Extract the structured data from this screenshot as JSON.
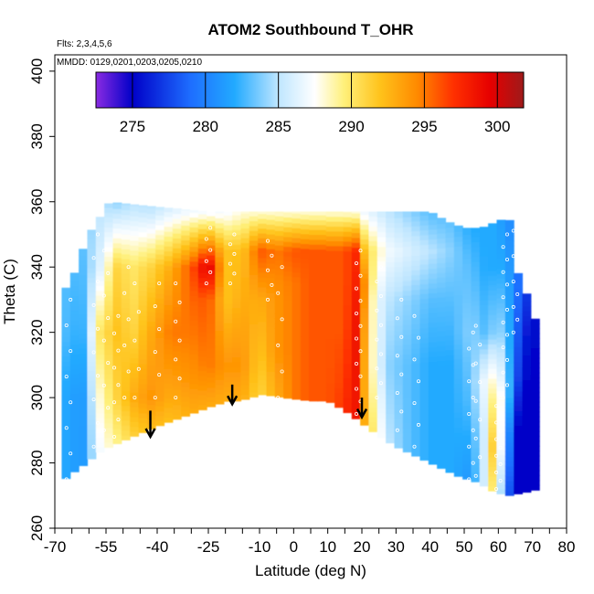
{
  "chart_data": {
    "type": "heatmap",
    "title": "ATOM2 Southbound T_OHR",
    "annotations": [
      "Flts: 2,3,4,5,6",
      "MMDD: 0129,0201,0203,0205,0210"
    ],
    "xlabel": "Latitude (deg N)",
    "ylabel": "Theta (C)",
    "xlim": [
      -70,
      80
    ],
    "ylim": [
      260,
      405
    ],
    "x_ticks": [
      -70,
      -55,
      -40,
      -25,
      -10,
      0,
      10,
      20,
      30,
      40,
      50,
      60,
      70,
      80
    ],
    "y_ticks": [
      260,
      280,
      300,
      320,
      340,
      360,
      380,
      400
    ],
    "colorbar": {
      "range": [
        272.5,
        301.8
      ],
      "ticks": [
        275,
        280,
        285,
        290,
        295,
        300
      ],
      "stops": [
        {
          "v": 272.5,
          "c": "#8a2be2"
        },
        {
          "v": 275,
          "c": "#0000c8"
        },
        {
          "v": 279,
          "c": "#1e6eff"
        },
        {
          "v": 282,
          "c": "#22aaff"
        },
        {
          "v": 285,
          "c": "#bfe6ff"
        },
        {
          "v": 287.5,
          "c": "#ffffff"
        },
        {
          "v": 289.5,
          "c": "#fff07a"
        },
        {
          "v": 292,
          "c": "#ffc21a"
        },
        {
          "v": 294.5,
          "c": "#ff8a00"
        },
        {
          "v": 297,
          "c": "#ff3000"
        },
        {
          "v": 299.5,
          "c": "#e60000"
        },
        {
          "v": 301.8,
          "c": "#9e1a1a"
        }
      ]
    },
    "field_bottom": [
      [
        -68,
        274
      ],
      [
        -66,
        276
      ],
      [
        -62,
        279
      ],
      [
        -56,
        284
      ],
      [
        -45,
        289
      ],
      [
        -38,
        292
      ],
      [
        -30,
        295
      ],
      [
        -25,
        297
      ],
      [
        -19,
        299
      ],
      [
        -16,
        299
      ],
      [
        -9,
        301
      ],
      [
        -3,
        300
      ],
      [
        5,
        299
      ],
      [
        10,
        299
      ],
      [
        15,
        296
      ],
      [
        19,
        293
      ],
      [
        24,
        289
      ],
      [
        30,
        285
      ],
      [
        36,
        282
      ],
      [
        42,
        279
      ],
      [
        48,
        276
      ],
      [
        54,
        274
      ],
      [
        59,
        271
      ],
      [
        63,
        270
      ],
      [
        68,
        271
      ],
      [
        72,
        272
      ]
    ],
    "field_top": [
      [
        -68,
        332
      ],
      [
        -65,
        336
      ],
      [
        -62,
        345
      ],
      [
        -59,
        352
      ],
      [
        -55,
        358
      ],
      [
        -54,
        360
      ],
      [
        -45,
        359
      ],
      [
        -35,
        358
      ],
      [
        -25,
        357
      ],
      [
        -15,
        357
      ],
      [
        0,
        357
      ],
      [
        15,
        357
      ],
      [
        30,
        357
      ],
      [
        40,
        357
      ],
      [
        45,
        354
      ],
      [
        50,
        352
      ],
      [
        55,
        352
      ],
      [
        62,
        355
      ],
      [
        64,
        354
      ],
      [
        65,
        340
      ],
      [
        69,
        330
      ],
      [
        72,
        320
      ]
    ],
    "columns": [
      {
        "lat": -68,
        "vals": [
          [
            274,
            282
          ],
          [
            300,
            282
          ],
          [
            320,
            283
          ],
          [
            332,
            283
          ]
        ]
      },
      {
        "lat": -62,
        "vals": [
          [
            279,
            281
          ],
          [
            300,
            281
          ],
          [
            320,
            282
          ],
          [
            345,
            283
          ]
        ]
      },
      {
        "lat": -57,
        "vals": [
          [
            283,
            287
          ],
          [
            300,
            288
          ],
          [
            320,
            290
          ],
          [
            340,
            286
          ],
          [
            358,
            285
          ]
        ]
      },
      {
        "lat": -52,
        "vals": [
          [
            285,
            289
          ],
          [
            300,
            291
          ],
          [
            320,
            292
          ],
          [
            340,
            291
          ],
          [
            360,
            284
          ]
        ]
      },
      {
        "lat": -47,
        "vals": [
          [
            287,
            291
          ],
          [
            300,
            293
          ],
          [
            320,
            291
          ],
          [
            340,
            290
          ],
          [
            359,
            285
          ]
        ]
      },
      {
        "lat": -42,
        "vals": [
          [
            289,
            292
          ],
          [
            300,
            294
          ],
          [
            320,
            293
          ],
          [
            340,
            291
          ],
          [
            358,
            285
          ]
        ]
      },
      {
        "lat": -36,
        "vals": [
          [
            292,
            292
          ],
          [
            300,
            293
          ],
          [
            320,
            295
          ],
          [
            340,
            293
          ],
          [
            358,
            286
          ]
        ]
      },
      {
        "lat": -30,
        "vals": [
          [
            295,
            293
          ],
          [
            305,
            294
          ],
          [
            320,
            295
          ],
          [
            340,
            296
          ],
          [
            357,
            287
          ]
        ]
      },
      {
        "lat": -25,
        "vals": [
          [
            297,
            293
          ],
          [
            310,
            295
          ],
          [
            330,
            296
          ],
          [
            340,
            300
          ],
          [
            357,
            287
          ]
        ]
      },
      {
        "lat": -20,
        "vals": [
          [
            299,
            293
          ],
          [
            310,
            294
          ],
          [
            330,
            292
          ],
          [
            345,
            292
          ],
          [
            357,
            287
          ]
        ]
      },
      {
        "lat": -15,
        "vals": [
          [
            299,
            293
          ],
          [
            310,
            294
          ],
          [
            330,
            293
          ],
          [
            345,
            292
          ],
          [
            357,
            288
          ]
        ]
      },
      {
        "lat": -10,
        "vals": [
          [
            301,
            291
          ],
          [
            315,
            292
          ],
          [
            330,
            293
          ],
          [
            345,
            296
          ],
          [
            357,
            288
          ]
        ]
      },
      {
        "lat": -5,
        "vals": [
          [
            300,
            293
          ],
          [
            315,
            294
          ],
          [
            330,
            294
          ],
          [
            345,
            295
          ],
          [
            357,
            288
          ]
        ]
      },
      {
        "lat": 0,
        "vals": [
          [
            300,
            295
          ],
          [
            320,
            295
          ],
          [
            335,
            295
          ],
          [
            345,
            296
          ],
          [
            357,
            288
          ]
        ]
      },
      {
        "lat": 5,
        "vals": [
          [
            299,
            296
          ],
          [
            320,
            296
          ],
          [
            335,
            296
          ],
          [
            345,
            296
          ],
          [
            357,
            288
          ]
        ]
      },
      {
        "lat": 10,
        "vals": [
          [
            299,
            296
          ],
          [
            320,
            296
          ],
          [
            335,
            296
          ],
          [
            345,
            296
          ],
          [
            357,
            288
          ]
        ]
      },
      {
        "lat": 15,
        "vals": [
          [
            296,
            297
          ],
          [
            320,
            296
          ],
          [
            335,
            296
          ],
          [
            345,
            296
          ],
          [
            357,
            288
          ]
        ]
      },
      {
        "lat": 18,
        "vals": [
          [
            294,
            299
          ],
          [
            320,
            299
          ],
          [
            335,
            298
          ],
          [
            345,
            298
          ],
          [
            357,
            288
          ]
        ]
      },
      {
        "lat": 20,
        "vals": [
          [
            293,
            294
          ],
          [
            320,
            295
          ],
          [
            335,
            296
          ],
          [
            345,
            293
          ],
          [
            357,
            287
          ]
        ]
      },
      {
        "lat": 24,
        "vals": [
          [
            289,
            289
          ],
          [
            310,
            287
          ],
          [
            330,
            287
          ],
          [
            345,
            289
          ],
          [
            357,
            286
          ]
        ]
      },
      {
        "lat": 28,
        "vals": [
          [
            286,
            285
          ],
          [
            310,
            284
          ],
          [
            330,
            285
          ],
          [
            345,
            287
          ],
          [
            357,
            285
          ]
        ]
      },
      {
        "lat": 34,
        "vals": [
          [
            283,
            283
          ],
          [
            310,
            283
          ],
          [
            330,
            284
          ],
          [
            345,
            286
          ],
          [
            357,
            284
          ]
        ]
      },
      {
        "lat": 40,
        "vals": [
          [
            280,
            282
          ],
          [
            310,
            282
          ],
          [
            330,
            283
          ],
          [
            345,
            285
          ],
          [
            357,
            283
          ]
        ]
      },
      {
        "lat": 46,
        "vals": [
          [
            277,
            282
          ],
          [
            310,
            282
          ],
          [
            330,
            283
          ],
          [
            345,
            284
          ],
          [
            356,
            283
          ]
        ]
      },
      {
        "lat": 52,
        "vals": [
          [
            275,
            281
          ],
          [
            300,
            283
          ],
          [
            320,
            284
          ],
          [
            340,
            283
          ],
          [
            352,
            282
          ]
        ]
      },
      {
        "lat": 56,
        "vals": [
          [
            273,
            286
          ],
          [
            290,
            286
          ],
          [
            305,
            287
          ],
          [
            320,
            283
          ],
          [
            340,
            282
          ],
          [
            352,
            282
          ]
        ]
      },
      {
        "lat": 59,
        "vals": [
          [
            272,
            291
          ],
          [
            285,
            293
          ],
          [
            300,
            290
          ],
          [
            320,
            284
          ],
          [
            340,
            282
          ],
          [
            354,
            282
          ]
        ]
      },
      {
        "lat": 62,
        "vals": [
          [
            270,
            280
          ],
          [
            285,
            283
          ],
          [
            300,
            286
          ],
          [
            320,
            284
          ],
          [
            340,
            282
          ],
          [
            355,
            281
          ]
        ]
      },
      {
        "lat": 65,
        "vals": [
          [
            270,
            275
          ],
          [
            290,
            275
          ],
          [
            305,
            278
          ],
          [
            320,
            279
          ],
          [
            340,
            280
          ]
        ]
      },
      {
        "lat": 68,
        "vals": [
          [
            271,
            275
          ],
          [
            300,
            275
          ],
          [
            320,
            276
          ],
          [
            330,
            277
          ]
        ]
      },
      {
        "lat": 72,
        "vals": [
          [
            272,
            275
          ],
          [
            300,
            275
          ],
          [
            320,
            275
          ]
        ]
      }
    ],
    "arrows": [
      {
        "lat": -42,
        "theta_top": 296,
        "theta_tip": 288
      },
      {
        "lat": -18,
        "theta_top": 304,
        "theta_tip": 298
      },
      {
        "lat": 20,
        "theta_top": 300,
        "theta_tip": 294
      }
    ]
  }
}
